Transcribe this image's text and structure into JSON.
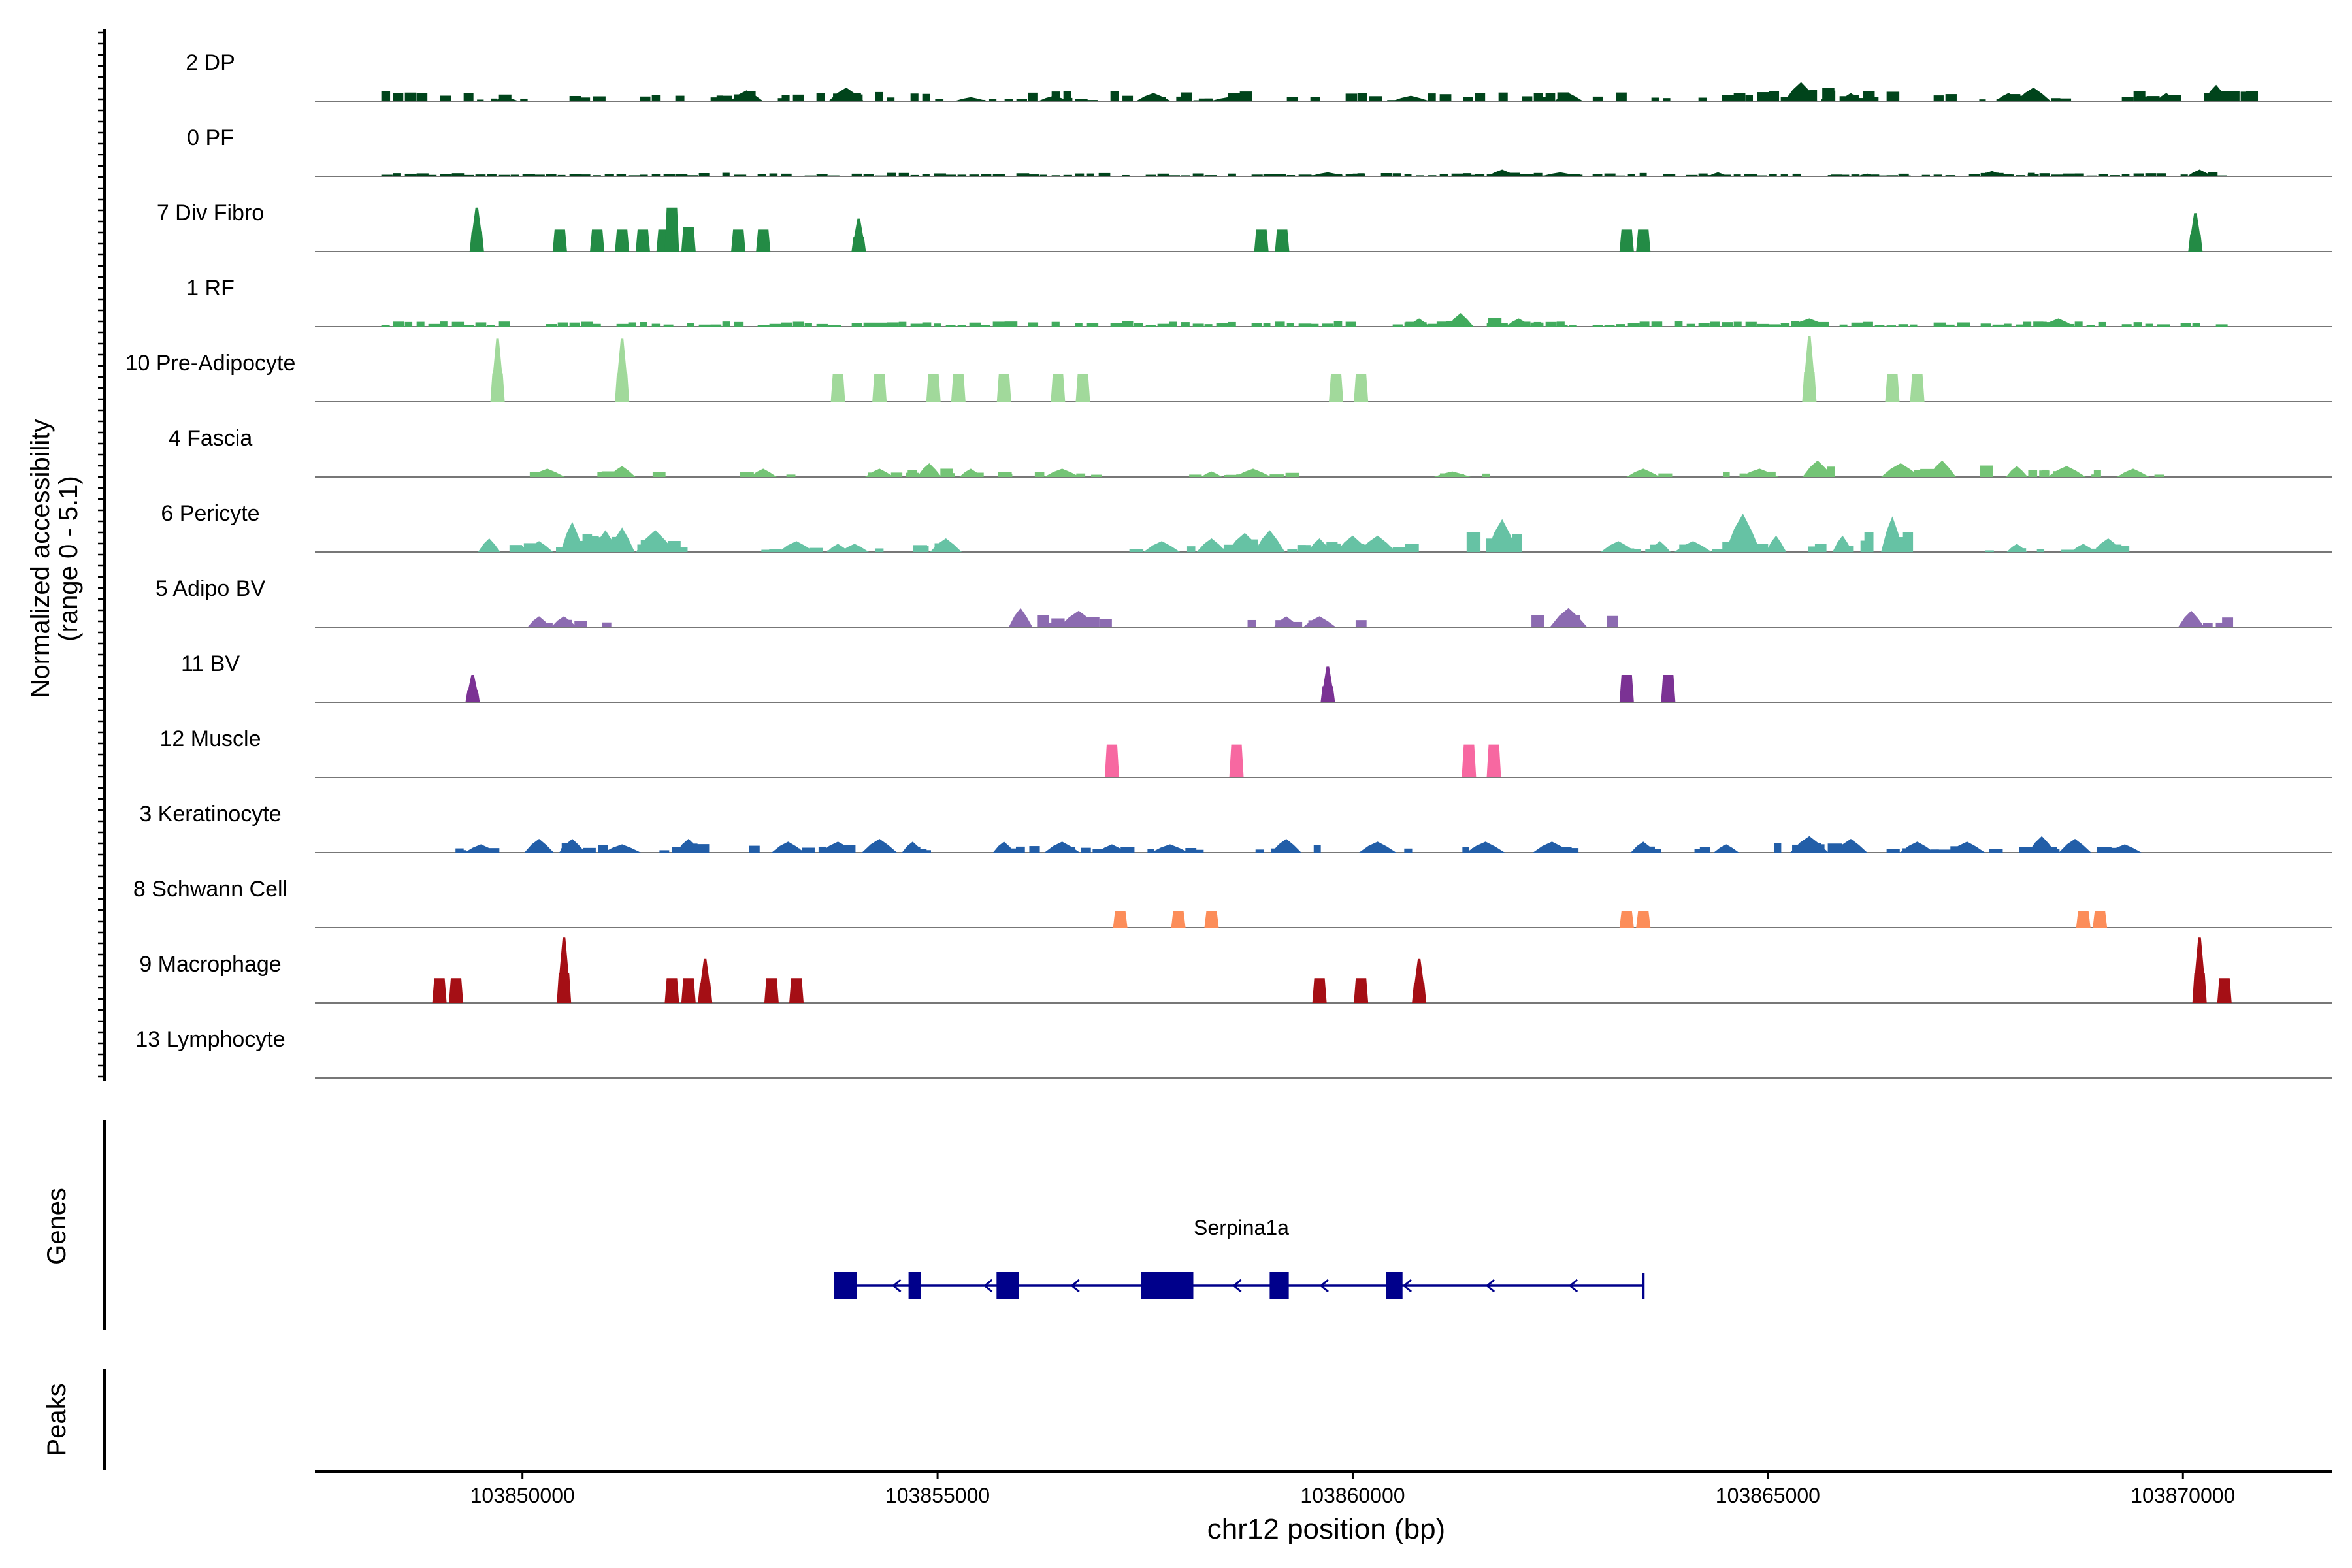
{
  "chart_data": {
    "type": "area",
    "title": "",
    "ylabel_lines": [
      "Normalized accessibility",
      "(range 0 - 5.1)"
    ],
    "ylim": [
      0,
      5.1
    ],
    "xlabel": "chr12 position (bp)",
    "xlim": [
      103847500,
      103871800
    ],
    "xticks": [
      103850000,
      103855000,
      103860000,
      103865000,
      103870000
    ],
    "xtick_labels": [
      "103850000",
      "103855000",
      "103860000",
      "103865000",
      "103870000"
    ],
    "panel_labels": {
      "genes": "Genes",
      "peaks": "Peaks"
    },
    "gene": {
      "name": "Serpina1a",
      "strand": "-",
      "start": 103853750,
      "end": 103863500,
      "exons": [
        [
          103853750,
          103854030
        ],
        [
          103854650,
          103854800
        ],
        [
          103855710,
          103855980
        ],
        [
          103857450,
          103858080
        ],
        [
          103859000,
          103859230
        ],
        [
          103860400,
          103860600
        ]
      ],
      "arrows": [
        103854500,
        103855600,
        103856650,
        103858600,
        103859650,
        103860650,
        103861650,
        103862650
      ]
    },
    "tracks": [
      {
        "name": "2 DP",
        "color": "#00441b",
        "style": "noise",
        "density": 0.55,
        "scale": 0.3,
        "peaks": [
          [
            103849800,
            0.15
          ],
          [
            103852700,
            0.4
          ],
          [
            103853900,
            0.5
          ],
          [
            103855400,
            0.15
          ],
          [
            103856400,
            0.2
          ],
          [
            103857600,
            0.3
          ],
          [
            103858500,
            0.15
          ],
          [
            103860700,
            0.2
          ],
          [
            103862600,
            0.3
          ],
          [
            103865400,
            0.7
          ],
          [
            103866000,
            0.3
          ],
          [
            103867900,
            0.3
          ],
          [
            103868200,
            0.5
          ],
          [
            103869800,
            0.3
          ],
          [
            103870400,
            0.6
          ]
        ]
      },
      {
        "name": "0 PF",
        "color": "#00441b",
        "style": "noise",
        "density": 0.85,
        "scale": 0.1,
        "peaks": [
          [
            103859700,
            0.15
          ],
          [
            103861800,
            0.25
          ],
          [
            103862500,
            0.15
          ],
          [
            103864400,
            0.15
          ],
          [
            103866200,
            0.1
          ],
          [
            103867700,
            0.2
          ],
          [
            103870200,
            0.25
          ]
        ]
      },
      {
        "name": "7 Div Fibro",
        "color": "#238b45",
        "style": "block",
        "peaks": [
          [
            103849450,
            1.6,
            "spike"
          ],
          [
            103850450,
            0.8
          ],
          [
            103850900,
            0.8
          ],
          [
            103851200,
            0.8
          ],
          [
            103851450,
            0.8
          ],
          [
            103851700,
            0.8
          ],
          [
            103851800,
            1.6
          ],
          [
            103852000,
            0.9
          ],
          [
            103852600,
            0.8
          ],
          [
            103852900,
            0.8
          ],
          [
            103854050,
            1.2,
            "spike"
          ],
          [
            103858900,
            0.8
          ],
          [
            103859150,
            0.8
          ],
          [
            103863300,
            0.8
          ],
          [
            103863500,
            0.8
          ],
          [
            103870150,
            1.4,
            "spike"
          ]
        ]
      },
      {
        "name": "1 RF",
        "color": "#41ab5d",
        "style": "noise",
        "density": 0.8,
        "scale": 0.15,
        "peaks": [
          [
            103860800,
            0.3
          ],
          [
            103861300,
            0.5
          ],
          [
            103862000,
            0.3
          ],
          [
            103865500,
            0.3
          ],
          [
            103868500,
            0.3
          ]
        ]
      },
      {
        "name": "10 Pre-Adipocyte",
        "color": "#a1d99b",
        "style": "block",
        "peaks": [
          [
            103849700,
            2.3,
            "spike"
          ],
          [
            103851200,
            2.3,
            "spike"
          ],
          [
            103853800,
            1.0
          ],
          [
            103854300,
            1.0
          ],
          [
            103854950,
            1.0
          ],
          [
            103855250,
            1.0
          ],
          [
            103855800,
            1.0
          ],
          [
            103856450,
            1.0
          ],
          [
            103856750,
            1.0
          ],
          [
            103859800,
            1.0
          ],
          [
            103860100,
            1.0
          ],
          [
            103865500,
            2.4,
            "spike"
          ],
          [
            103866500,
            1.0
          ],
          [
            103866800,
            1.0
          ]
        ]
      },
      {
        "name": "4 Fascia",
        "color": "#74c476",
        "style": "sparse",
        "peaks": [
          [
            103850300,
            0.3
          ],
          [
            103851200,
            0.4
          ],
          [
            103852900,
            0.3
          ],
          [
            103854300,
            0.3
          ],
          [
            103854900,
            0.5
          ],
          [
            103855400,
            0.3
          ],
          [
            103856500,
            0.3
          ],
          [
            103858300,
            0.2
          ],
          [
            103858800,
            0.3
          ],
          [
            103861200,
            0.2
          ],
          [
            103863500,
            0.3
          ],
          [
            103864900,
            0.3
          ],
          [
            103865600,
            0.6
          ],
          [
            103866600,
            0.5
          ],
          [
            103867100,
            0.6
          ],
          [
            103868000,
            0.4
          ],
          [
            103868600,
            0.4
          ],
          [
            103869400,
            0.3
          ]
        ]
      },
      {
        "name": "6 Pericyte",
        "color": "#66c2a4",
        "style": "sparse",
        "peaks": [
          [
            103849600,
            0.5
          ],
          [
            103850200,
            0.4
          ],
          [
            103850600,
            1.1
          ],
          [
            103851000,
            0.8
          ],
          [
            103851200,
            0.9
          ],
          [
            103851600,
            0.8
          ],
          [
            103853300,
            0.4
          ],
          [
            103853800,
            0.3
          ],
          [
            103854000,
            0.3
          ],
          [
            103855100,
            0.5
          ],
          [
            103857700,
            0.4
          ],
          [
            103858300,
            0.5
          ],
          [
            103858700,
            0.7
          ],
          [
            103859000,
            0.8
          ],
          [
            103859600,
            0.5
          ],
          [
            103860000,
            0.6
          ],
          [
            103860300,
            0.6
          ],
          [
            103861800,
            1.2
          ],
          [
            103863200,
            0.4
          ],
          [
            103863700,
            0.4
          ],
          [
            103864100,
            0.4
          ],
          [
            103864700,
            1.4
          ],
          [
            103865100,
            0.6
          ],
          [
            103865900,
            0.6
          ],
          [
            103866500,
            1.3
          ],
          [
            103868000,
            0.3
          ],
          [
            103868800,
            0.3
          ],
          [
            103869100,
            0.5
          ]
        ]
      },
      {
        "name": "5 Adipo BV",
        "color": "#8c6bb1",
        "style": "sparse",
        "peaks": [
          [
            103850200,
            0.4
          ],
          [
            103850500,
            0.4
          ],
          [
            103856000,
            0.7
          ],
          [
            103856700,
            0.6
          ],
          [
            103859200,
            0.4
          ],
          [
            103859600,
            0.4
          ],
          [
            103862600,
            0.7
          ],
          [
            103870100,
            0.6
          ]
        ]
      },
      {
        "name": "11 BV",
        "color": "#7b3294",
        "style": "block",
        "peaks": [
          [
            103849400,
            1.0,
            "spike"
          ],
          [
            103859700,
            1.3,
            "spike"
          ],
          [
            103863300,
            1.0
          ],
          [
            103863800,
            1.0
          ]
        ]
      },
      {
        "name": "12 Muscle",
        "color": "#f768a1",
        "style": "block",
        "peaks": [
          [
            103857100,
            1.2
          ],
          [
            103858600,
            1.2
          ],
          [
            103861400,
            1.2
          ],
          [
            103861700,
            1.2
          ]
        ]
      },
      {
        "name": "3 Keratinocyte",
        "color": "#225ea8",
        "style": "sparse",
        "peaks": [
          [
            103849500,
            0.3
          ],
          [
            103850200,
            0.5
          ],
          [
            103850600,
            0.5
          ],
          [
            103851200,
            0.3
          ],
          [
            103852000,
            0.5
          ],
          [
            103853200,
            0.4
          ],
          [
            103853800,
            0.4
          ],
          [
            103854300,
            0.5
          ],
          [
            103854700,
            0.4
          ],
          [
            103855800,
            0.4
          ],
          [
            103856500,
            0.4
          ],
          [
            103857100,
            0.3
          ],
          [
            103857800,
            0.3
          ],
          [
            103859200,
            0.5
          ],
          [
            103860300,
            0.4
          ],
          [
            103861600,
            0.4
          ],
          [
            103862400,
            0.4
          ],
          [
            103863500,
            0.4
          ],
          [
            103864500,
            0.3
          ],
          [
            103865500,
            0.6
          ],
          [
            103866000,
            0.5
          ],
          [
            103866800,
            0.4
          ],
          [
            103867400,
            0.4
          ],
          [
            103868300,
            0.6
          ],
          [
            103868700,
            0.5
          ],
          [
            103869300,
            0.3
          ]
        ]
      },
      {
        "name": "8 Schwann Cell",
        "color": "#fc8d59",
        "style": "block",
        "peaks": [
          [
            103857200,
            0.6
          ],
          [
            103857900,
            0.6
          ],
          [
            103858300,
            0.6
          ],
          [
            103863300,
            0.6
          ],
          [
            103863500,
            0.6
          ],
          [
            103868800,
            0.6
          ],
          [
            103869000,
            0.6
          ]
        ]
      },
      {
        "name": "9 Macrophage",
        "color": "#a50f15",
        "style": "block",
        "peaks": [
          [
            103849000,
            0.9
          ],
          [
            103849200,
            0.9
          ],
          [
            103850500,
            2.4,
            "spike"
          ],
          [
            103851800,
            0.9
          ],
          [
            103852000,
            0.9
          ],
          [
            103852200,
            1.6,
            "spike"
          ],
          [
            103853000,
            0.9
          ],
          [
            103853300,
            0.9
          ],
          [
            103859600,
            0.9
          ],
          [
            103860100,
            0.9
          ],
          [
            103860800,
            1.6,
            "spike"
          ],
          [
            103870200,
            2.4,
            "spike"
          ],
          [
            103870500,
            0.9
          ]
        ]
      },
      {
        "name": "13 Lymphocyte",
        "color": "#555555",
        "style": "none",
        "peaks": []
      }
    ]
  }
}
